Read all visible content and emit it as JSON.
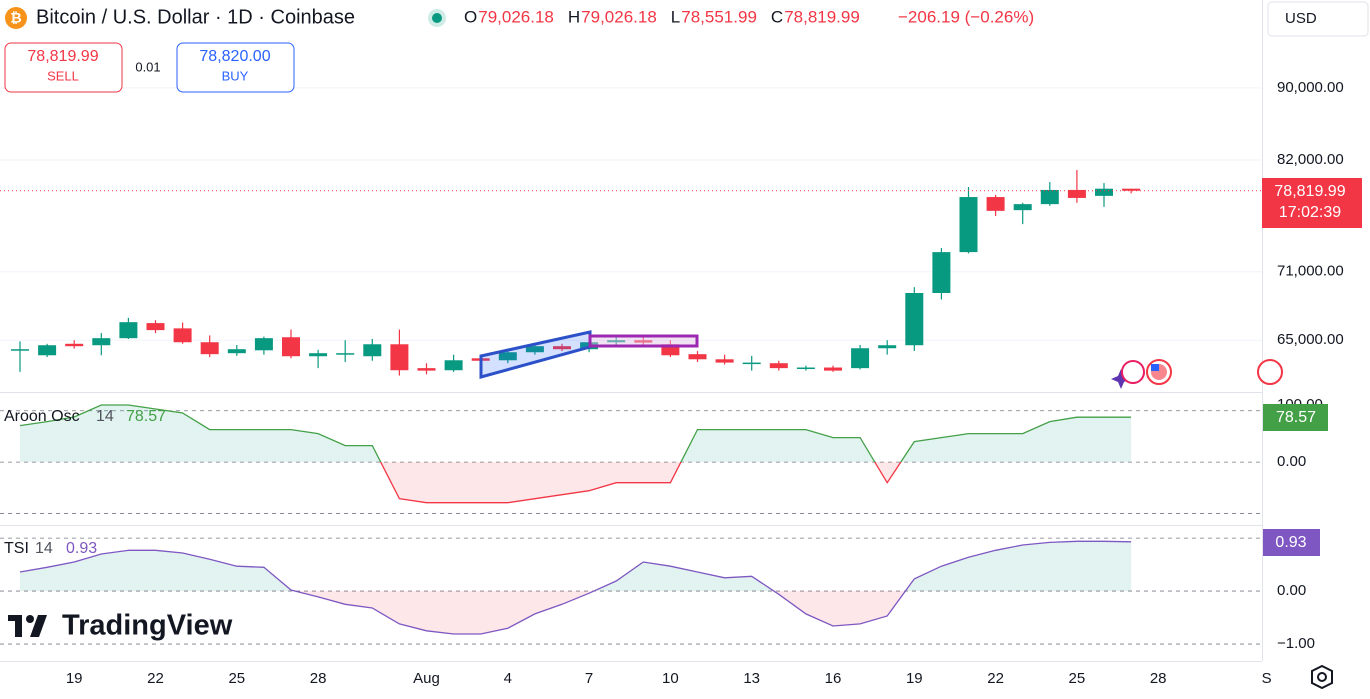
{
  "header": {
    "title": "Bitcoin / U.S. Dollar · 1D · Coinbase",
    "ohlc": [
      {
        "label": "O",
        "value": "79,026.18"
      },
      {
        "label": "H",
        "value": "79,026.18"
      },
      {
        "label": "L",
        "value": "78,551.99"
      },
      {
        "label": "C",
        "value": "78,819.99"
      }
    ],
    "change": "−206.19 (−0.26%)",
    "sell": {
      "price": "78,819.99",
      "label": "SELL"
    },
    "spread": "0.01",
    "buy": {
      "price": "78,820.00",
      "label": "BUY"
    },
    "currency": "USD",
    "price_label": "78,819.99",
    "countdown": "17:02:39",
    "logo": "TradingView"
  },
  "chart_data": [
    {
      "type": "candlestick",
      "log_scale": true,
      "grid": true,
      "up_color": "#089981",
      "down_color": "#f23645",
      "categories": [
        null,
        null,
        "19",
        null,
        null,
        "22",
        null,
        null,
        "25",
        null,
        null,
        "28",
        null,
        null,
        null,
        "Aug",
        null,
        null,
        "4",
        null,
        null,
        "7",
        null,
        null,
        "10",
        null,
        null,
        "13",
        null,
        null,
        "16",
        null,
        null,
        "19",
        null,
        null,
        "22",
        null,
        null,
        "25",
        null,
        null,
        "28",
        null,
        null,
        null,
        "S"
      ],
      "open": [
        64200,
        63750,
        64700,
        64580,
        65170,
        66450,
        66000,
        64830,
        63920,
        64160,
        65250,
        63670,
        63900,
        63670,
        64660,
        62700,
        62530,
        63500,
        63340,
        64000,
        64500,
        64250,
        64830,
        65000,
        64660,
        63840,
        63420,
        63100,
        63100,
        62700,
        62750,
        62700,
        64330,
        64580,
        69080,
        72820,
        78180,
        76870,
        77470,
        78900,
        78300,
        79026.18,
        null,
        null,
        null,
        null,
        null
      ],
      "high": [
        64900,
        64700,
        65000,
        65600,
        66900,
        66700,
        66500,
        65400,
        64600,
        65300,
        65900,
        64200,
        65000,
        65100,
        65900,
        63100,
        63800,
        63700,
        64200,
        64600,
        64700,
        65000,
        65300,
        65400,
        65000,
        64100,
        63800,
        63700,
        63300,
        62900,
        62900,
        64600,
        65000,
        69600,
        73200,
        79200,
        78400,
        77600,
        79700,
        80950,
        79600,
        79026.18,
        null,
        null,
        null,
        null,
        null
      ],
      "low": [
        62400,
        63600,
        64300,
        63750,
        65100,
        65600,
        64700,
        63600,
        63700,
        63800,
        63500,
        62700,
        63200,
        63300,
        62100,
        62200,
        62400,
        63000,
        63100,
        63800,
        64100,
        64000,
        64500,
        64600,
        63600,
        63200,
        63000,
        62500,
        62500,
        62500,
        62400,
        62600,
        63800,
        64100,
        68500,
        72700,
        76300,
        75500,
        77300,
        77600,
        77200,
        78551.99,
        null,
        null,
        null,
        null,
        null
      ],
      "close": [
        64250,
        64580,
        64500,
        65170,
        66530,
        65850,
        64830,
        63840,
        64250,
        65170,
        63670,
        63920,
        63920,
        64660,
        62530,
        62500,
        63340,
        63300,
        64000,
        64500,
        64250,
        64830,
        65000,
        64800,
        63750,
        63420,
        63150,
        63150,
        62700,
        62750,
        62500,
        64330,
        64580,
        69080,
        72820,
        78180,
        76800,
        77470,
        78900,
        78090,
        79026.18,
        78819.99,
        null,
        null,
        null,
        null,
        null
      ],
      "ylim": [
        60800,
        100800
      ],
      "yticks": [
        {
          "value": 65000,
          "label": "65,000.00"
        },
        {
          "value": 71000,
          "label": "71,000.00"
        },
        {
          "value": 82000,
          "label": "82,000.00"
        },
        {
          "value": 90000,
          "label": "90,000.00"
        }
      ]
    },
    {
      "type": "line",
      "name": "Aroon Osc",
      "length": "14",
      "color": "#43a047",
      "negative_color": "#f23645",
      "values": [
        64,
        71,
        79,
        100,
        100,
        93,
        86,
        57,
        57,
        57,
        57,
        50,
        29,
        29,
        -64,
        -71,
        -71,
        -71,
        -71,
        -64,
        -57,
        -50,
        -36,
        -36,
        -36,
        57,
        57,
        57,
        57,
        57,
        43,
        43,
        -36,
        36,
        43,
        50,
        50,
        50,
        71,
        78.57,
        78.57,
        78.57
      ],
      "ylim": [
        -110,
        121
      ],
      "yticks": [
        {
          "value": 100,
          "label": "100.00"
        },
        {
          "value": 0,
          "label": "0.00"
        }
      ],
      "hlines": [
        90,
        0,
        -90
      ]
    },
    {
      "type": "line",
      "name": "TSI",
      "length": "14",
      "color": "#7e57c2",
      "negative_color": "#7e57c2",
      "values": [
        0.36,
        0.45,
        0.55,
        0.7,
        0.77,
        0.77,
        0.72,
        0.6,
        0.47,
        0.45,
        0.02,
        -0.11,
        -0.25,
        -0.32,
        -0.62,
        -0.75,
        -0.81,
        -0.81,
        -0.7,
        -0.43,
        -0.25,
        -0.04,
        0.19,
        0.55,
        0.47,
        0.36,
        0.25,
        0.28,
        -0.06,
        -0.43,
        -0.66,
        -0.62,
        -0.47,
        0.23,
        0.47,
        0.64,
        0.77,
        0.87,
        0.92,
        0.94,
        0.94,
        0.93
      ],
      "ylim": [
        -1.32,
        1.21
      ],
      "yticks": [
        {
          "value": 0,
          "label": "0.00"
        },
        {
          "value": -1,
          "label": "−1.00"
        }
      ],
      "hlines": [
        1,
        0,
        -1
      ]
    }
  ]
}
